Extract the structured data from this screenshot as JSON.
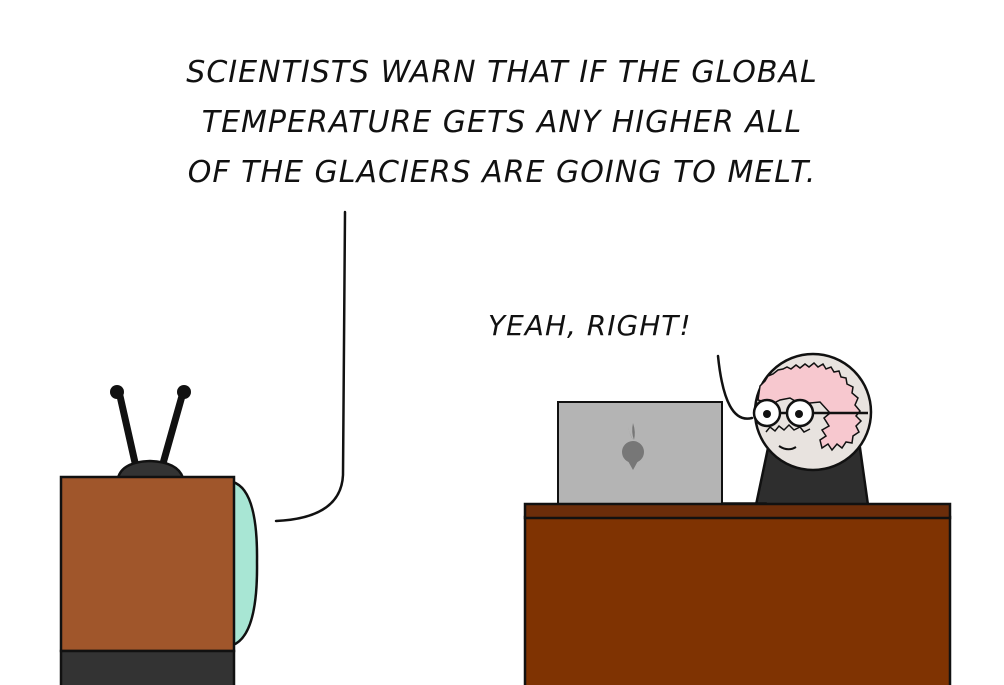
{
  "comic": {
    "tv_caption_lines": [
      "SCIENTISTS WARN THAT IF THE GLOBAL",
      "TEMPERATURE GETS ANY HIGHER ALL",
      "OF THE GLACIERS ARE GOING TO MELT."
    ],
    "man_reply": "YEAH, RIGHT!"
  },
  "colors": {
    "tv_cabinet": "#a0562b",
    "tv_base": "#333333",
    "tv_screen": "#a8e6d4",
    "desk_top": "#6b2d0a",
    "desk_front": "#7f3302",
    "laptop": "#b4b4b4",
    "laptop_logo": "#777777",
    "man_shirt": "#2e2e2e",
    "man_head": "#e8e3df",
    "man_hair": "#f7c8cf",
    "ink": "#111111"
  },
  "icons": {
    "laptop_logo": "turnip-icon"
  }
}
